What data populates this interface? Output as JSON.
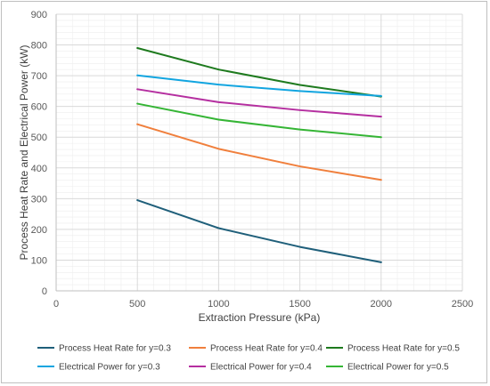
{
  "chart_data": {
    "type": "line",
    "title": "",
    "xlabel": "Extraction Pressure (kPa)",
    "ylabel": "Process Heat Rate and Electrical Power (kW)",
    "xlim": [
      0,
      2500
    ],
    "ylim": [
      0,
      900
    ],
    "xticks": [
      0,
      500,
      1000,
      1500,
      2000,
      2500
    ],
    "yticks": [
      0,
      100,
      200,
      300,
      400,
      500,
      600,
      700,
      800,
      900
    ],
    "grid": true,
    "legend_position": "bottom",
    "x": [
      500,
      1000,
      1500,
      2000
    ],
    "series": [
      {
        "name": "Process Heat Rate for y=0.3",
        "color": "#1f5f7a",
        "values": [
          295,
          204,
          143,
          93
        ]
      },
      {
        "name": "Process Heat Rate for y=0.4",
        "color": "#f07f3c",
        "values": [
          542,
          462,
          405,
          361
        ]
      },
      {
        "name": "Process Heat Rate for y=0.5",
        "color": "#1e7a1e",
        "values": [
          790,
          720,
          670,
          632
        ]
      },
      {
        "name": "Electrical Power for y=0.3",
        "color": "#12a5e0",
        "values": [
          701,
          671,
          650,
          634
        ]
      },
      {
        "name": "Electrical Power for y=0.4",
        "color": "#b52fa0",
        "values": [
          656,
          614,
          588,
          567
        ]
      },
      {
        "name": "Electrical Power for y=0.5",
        "color": "#35b535",
        "values": [
          609,
          557,
          525,
          500
        ]
      }
    ]
  }
}
